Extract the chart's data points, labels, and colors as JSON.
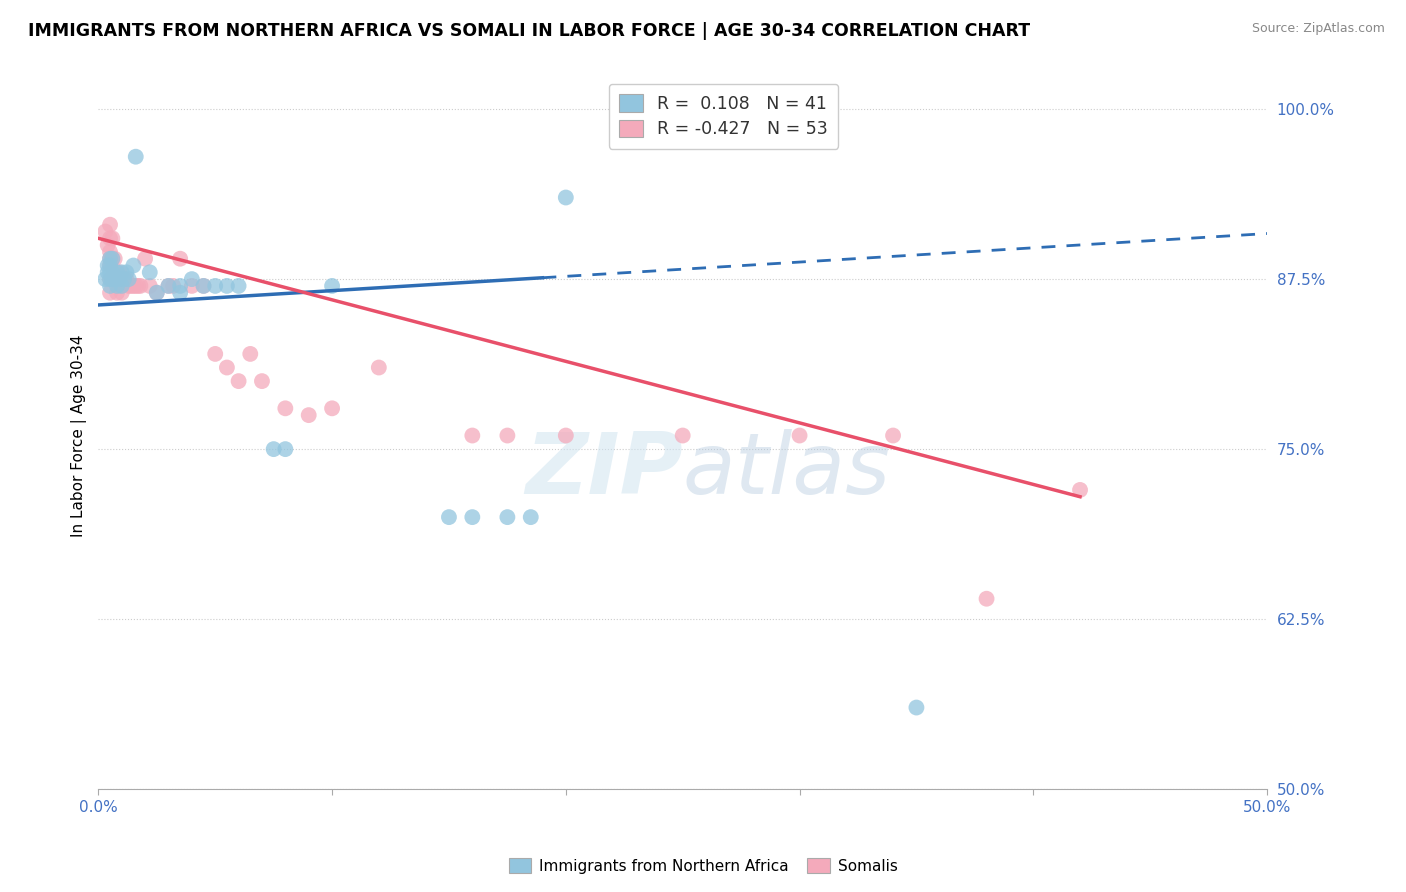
{
  "title": "IMMIGRANTS FROM NORTHERN AFRICA VS SOMALI IN LABOR FORCE | AGE 30-34 CORRELATION CHART",
  "source_text": "Source: ZipAtlas.com",
  "ylabel": "In Labor Force | Age 30-34",
  "xlim": [
    0.0,
    0.5
  ],
  "ylim": [
    0.5,
    1.02
  ],
  "xticks": [
    0.0,
    0.1,
    0.2,
    0.3,
    0.4,
    0.5
  ],
  "xticklabels": [
    "0.0%",
    "",
    "",
    "",
    "",
    "50.0%"
  ],
  "yticks": [
    0.5,
    0.625,
    0.75,
    0.875,
    1.0
  ],
  "yticklabels": [
    "50.0%",
    "62.5%",
    "75.0%",
    "87.5%",
    "100.0%"
  ],
  "R_blue": 0.108,
  "N_blue": 41,
  "R_pink": -0.427,
  "N_pink": 53,
  "blue_color": "#92C5DE",
  "pink_color": "#F4AABB",
  "trend_blue": "#2E6DB4",
  "trend_pink": "#E8506A",
  "legend_label_blue": "Immigrants from Northern Africa",
  "legend_label_pink": "Somalis",
  "watermark": "ZIPatlas",
  "blue_scatter_x": [
    0.003,
    0.004,
    0.004,
    0.005,
    0.005,
    0.005,
    0.005,
    0.005,
    0.006,
    0.006,
    0.006,
    0.007,
    0.008,
    0.008,
    0.009,
    0.01,
    0.01,
    0.011,
    0.012,
    0.013,
    0.015,
    0.016,
    0.022,
    0.025,
    0.03,
    0.035,
    0.04,
    0.045,
    0.05,
    0.055,
    0.06,
    0.075,
    0.08,
    0.1,
    0.15,
    0.16,
    0.175,
    0.185,
    0.2,
    0.35,
    0.035
  ],
  "blue_scatter_y": [
    0.875,
    0.88,
    0.885,
    0.87,
    0.875,
    0.88,
    0.885,
    0.89,
    0.875,
    0.88,
    0.89,
    0.875,
    0.87,
    0.88,
    0.875,
    0.87,
    0.88,
    0.875,
    0.88,
    0.875,
    0.885,
    0.965,
    0.88,
    0.865,
    0.87,
    0.865,
    0.875,
    0.87,
    0.87,
    0.87,
    0.87,
    0.75,
    0.75,
    0.87,
    0.7,
    0.7,
    0.7,
    0.7,
    0.935,
    0.56,
    0.87
  ],
  "pink_scatter_x": [
    0.003,
    0.004,
    0.005,
    0.005,
    0.005,
    0.005,
    0.005,
    0.005,
    0.005,
    0.006,
    0.006,
    0.006,
    0.007,
    0.007,
    0.008,
    0.008,
    0.009,
    0.009,
    0.01,
    0.01,
    0.011,
    0.012,
    0.013,
    0.014,
    0.015,
    0.016,
    0.017,
    0.018,
    0.02,
    0.022,
    0.025,
    0.03,
    0.032,
    0.035,
    0.04,
    0.045,
    0.05,
    0.055,
    0.06,
    0.065,
    0.07,
    0.08,
    0.09,
    0.1,
    0.12,
    0.16,
    0.175,
    0.2,
    0.25,
    0.3,
    0.34,
    0.38,
    0.42
  ],
  "pink_scatter_y": [
    0.91,
    0.9,
    0.915,
    0.905,
    0.895,
    0.89,
    0.885,
    0.875,
    0.865,
    0.905,
    0.89,
    0.875,
    0.89,
    0.875,
    0.875,
    0.865,
    0.88,
    0.87,
    0.875,
    0.865,
    0.875,
    0.875,
    0.87,
    0.87,
    0.87,
    0.87,
    0.87,
    0.87,
    0.89,
    0.87,
    0.865,
    0.87,
    0.87,
    0.89,
    0.87,
    0.87,
    0.82,
    0.81,
    0.8,
    0.82,
    0.8,
    0.78,
    0.775,
    0.78,
    0.81,
    0.76,
    0.76,
    0.76,
    0.76,
    0.76,
    0.76,
    0.64,
    0.72
  ],
  "trend_blue_x0": 0.0,
  "trend_blue_y0": 0.856,
  "trend_blue_x1_solid": 0.19,
  "trend_blue_y1_solid": 0.876,
  "trend_blue_x1_dash": 0.5,
  "trend_blue_y1_dash": 0.9085,
  "trend_pink_x0": 0.0,
  "trend_pink_y0": 0.905,
  "trend_pink_x1": 0.42,
  "trend_pink_y1": 0.715
}
